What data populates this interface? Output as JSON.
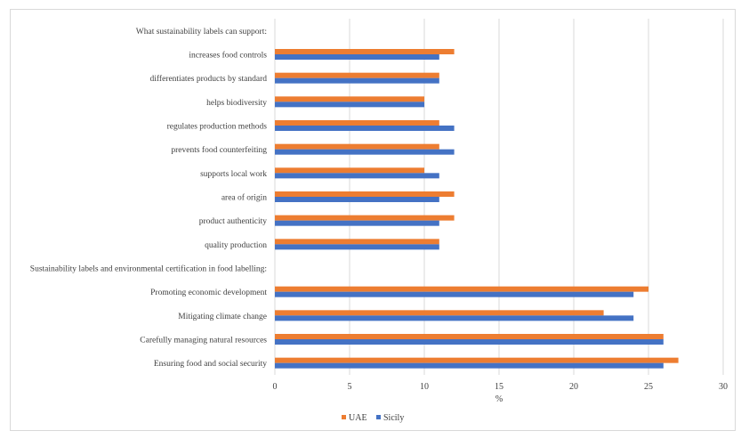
{
  "chart_data": {
    "type": "bar",
    "orientation": "horizontal",
    "title": "",
    "xlabel": "%",
    "ylabel": "",
    "xlim": [
      0,
      30
    ],
    "xticks": [
      0,
      5,
      10,
      15,
      20,
      25,
      30
    ],
    "grid": true,
    "legend_position": "bottom",
    "colors": {
      "UAE": "#ed7d31",
      "Sicily": "#4472c4",
      "grid": "#d9d9d9",
      "text": "#404040"
    },
    "categories": [
      "What sustainability labels can support:",
      "increases food controls",
      "differentiates products by standard",
      "helps biodiversity",
      "regulates production methods",
      "prevents food counterfeiting",
      "supports local work",
      "area of origin",
      "product authenticity",
      "quality production",
      "Sustainability labels and environmental certification in food labelling:",
      "Promoting economic development",
      "Mitigating climate change",
      "Carefully managing natural resources",
      "Ensuring food and social security"
    ],
    "series": [
      {
        "name": "UAE",
        "values": [
          null,
          12,
          11,
          10,
          11,
          11,
          10,
          12,
          12,
          11,
          null,
          25,
          22,
          26,
          27
        ]
      },
      {
        "name": "Sicily",
        "values": [
          null,
          11,
          11,
          10,
          12,
          12,
          11,
          11,
          11,
          11,
          null,
          24,
          24,
          26,
          26
        ]
      }
    ]
  }
}
